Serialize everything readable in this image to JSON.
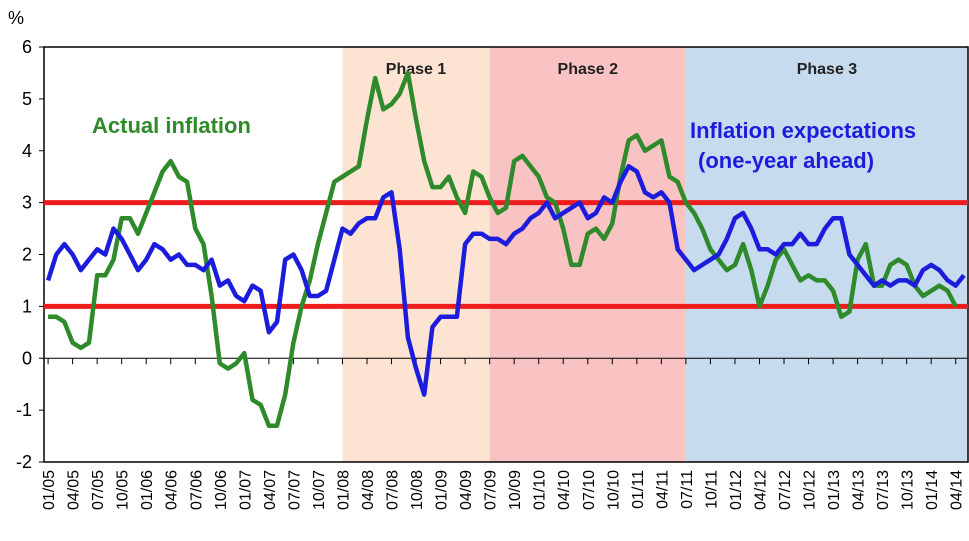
{
  "chart_data": {
    "type": "line",
    "y_label": "%",
    "categories": [
      "01/05",
      null,
      null,
      "04/05",
      null,
      null,
      "07/05",
      null,
      null,
      "10/05",
      null,
      null,
      "01/06",
      null,
      null,
      "04/06",
      null,
      null,
      "07/06",
      null,
      null,
      "10/06",
      null,
      null,
      "01/07",
      null,
      null,
      "04/07",
      null,
      null,
      "07/07",
      null,
      null,
      "10/07",
      null,
      null,
      "01/08",
      null,
      null,
      "04/08",
      null,
      null,
      "07/08",
      null,
      null,
      "10/08",
      null,
      null,
      "01/09",
      null,
      null,
      "04/09",
      null,
      null,
      "07/09",
      null,
      null,
      "10/09",
      null,
      null,
      "01/10",
      null,
      null,
      "04/10",
      null,
      null,
      "07/10",
      null,
      null,
      "10/10",
      null,
      null,
      "01/11",
      null,
      null,
      "04/11",
      null,
      null,
      "07/11",
      null,
      null,
      "10/11",
      null,
      null,
      "01/12",
      null,
      null,
      "04/12",
      null,
      null,
      "07/12",
      null,
      null,
      "10/12",
      null,
      null,
      "01/13",
      null,
      null,
      "04/13",
      null,
      null,
      "07/13",
      null,
      null,
      "10/13",
      null,
      null,
      "01/14",
      null,
      null,
      "04/14",
      null
    ],
    "series": [
      {
        "name": "Actual inflation",
        "color": "#2e8a2a",
        "values": [
          0.8,
          0.8,
          0.7,
          0.3,
          0.2,
          0.3,
          1.6,
          1.6,
          1.9,
          2.7,
          2.7,
          2.4,
          2.8,
          3.2,
          3.6,
          3.8,
          3.5,
          3.4,
          2.5,
          2.2,
          1.2,
          -0.1,
          -0.2,
          -0.1,
          0.1,
          -0.8,
          -0.9,
          -1.3,
          -1.3,
          -0.7,
          0.3,
          1.0,
          1.5,
          2.2,
          2.8,
          3.4,
          3.5,
          3.6,
          3.7,
          4.6,
          5.4,
          4.8,
          4.9,
          5.1,
          5.5,
          4.6,
          3.8,
          3.3,
          3.3,
          3.5,
          3.1,
          2.8,
          3.6,
          3.5,
          3.1,
          2.8,
          2.9,
          3.8,
          3.9,
          3.7,
          3.5,
          3.1,
          3.0,
          2.5,
          1.8,
          1.8,
          2.4,
          2.5,
          2.3,
          2.6,
          3.5,
          4.2,
          4.3,
          4.0,
          4.1,
          4.2,
          3.5,
          3.4,
          3.0,
          2.8,
          2.5,
          2.1,
          1.9,
          1.7,
          1.8,
          2.2,
          1.7,
          1.0,
          1.4,
          1.9,
          2.1,
          1.8,
          1.5,
          1.6,
          1.5,
          1.5,
          1.3,
          0.8,
          0.9,
          1.9,
          2.2,
          1.4,
          1.4,
          1.8,
          1.9,
          1.8,
          1.4,
          1.2,
          1.3,
          1.4,
          1.3,
          1.0,
          null
        ]
      },
      {
        "name": "Inflation expectations (one-year ahead)",
        "color": "#1c1cdc",
        "values": [
          1.5,
          2.0,
          2.2,
          2.0,
          1.7,
          1.9,
          2.1,
          2.0,
          2.5,
          2.3,
          2.0,
          1.7,
          1.9,
          2.2,
          2.1,
          1.9,
          2.0,
          1.8,
          1.8,
          1.7,
          1.9,
          1.4,
          1.5,
          1.2,
          1.1,
          1.4,
          1.3,
          0.5,
          0.7,
          1.9,
          2.0,
          1.7,
          1.2,
          1.2,
          1.3,
          1.9,
          2.5,
          2.4,
          2.6,
          2.7,
          2.7,
          3.1,
          3.2,
          2.1,
          0.4,
          -0.2,
          -0.7,
          0.6,
          0.8,
          0.8,
          0.8,
          2.2,
          2.4,
          2.4,
          2.3,
          2.3,
          2.2,
          2.4,
          2.5,
          2.7,
          2.8,
          3.0,
          2.7,
          2.8,
          2.9,
          3.0,
          2.7,
          2.8,
          3.1,
          3.0,
          3.4,
          3.7,
          3.6,
          3.2,
          3.1,
          3.2,
          3.0,
          2.1,
          1.9,
          1.7,
          1.8,
          1.9,
          2.0,
          2.3,
          2.7,
          2.8,
          2.5,
          2.1,
          2.1,
          2.0,
          2.2,
          2.2,
          2.4,
          2.2,
          2.2,
          2.5,
          2.7,
          2.7,
          2.0,
          1.8,
          1.6,
          1.4,
          1.5,
          1.4,
          1.5,
          1.5,
          1.4,
          1.7,
          1.8,
          1.7,
          1.5,
          1.4,
          1.6
        ]
      }
    ],
    "series_labels": [
      [
        "Actual inflation"
      ],
      [
        "Inflation expectations",
        "(one-year ahead)"
      ]
    ],
    "phases": [
      {
        "label": "Phase 1",
        "start": "01/08",
        "end": "07/09",
        "color": "#fde4d2"
      },
      {
        "label": "Phase 2",
        "start": "07/09",
        "end": "07/11",
        "color": "#f9c3c3"
      },
      {
        "label": "Phase 3",
        "start": "07/11",
        "color": "#c7dbee"
      }
    ],
    "reference_lines": [
      1,
      3
    ],
    "reference_color": "#ee1c1c",
    "ylim": [
      -2,
      6
    ],
    "yticks": [
      -2,
      -1,
      0,
      1,
      2,
      3,
      4,
      5,
      6
    ],
    "grid": false
  }
}
